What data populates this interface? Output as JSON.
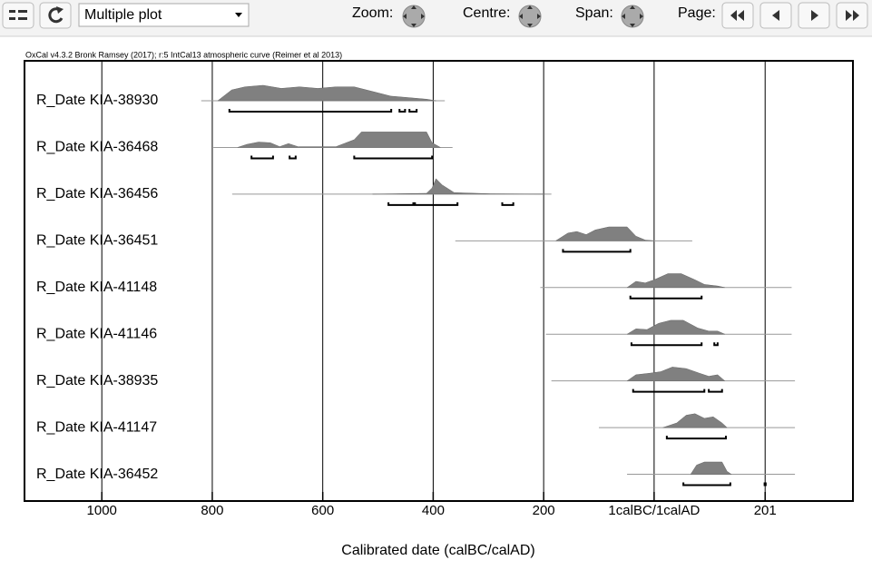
{
  "toolbar": {
    "plot_select": "Multiple plot",
    "zoom": "Zoom:",
    "centre": "Centre:",
    "span": "Span:",
    "page": "Page:"
  },
  "chart_data": {
    "type": "density",
    "credit": "OxCal v4.3.2 Bronk Ramsey (2017); r:5 IntCal13 atmospheric curve (Reimer et al 2013)",
    "x_label": "Calibrated date (calBC/calAD)",
    "xlim": [
      -1140,
      360
    ],
    "xticks": [
      {
        "value": -1000,
        "label": "1000"
      },
      {
        "value": -800,
        "label": "800"
      },
      {
        "value": -600,
        "label": "600"
      },
      {
        "value": -400,
        "label": "400"
      },
      {
        "value": -200,
        "label": "200"
      },
      {
        "value": 0,
        "label": "1calBC/1calAD"
      },
      201
    ],
    "grid": true,
    "color": "#808080",
    "series": [
      {
        "name": "R_Date KIA-38930",
        "line": [
          -820,
          -379
        ],
        "ranges": [
          [
            -769,
            -476
          ],
          [
            -461,
            -451
          ],
          [
            -443,
            -430
          ]
        ],
        "x": [
          -790,
          -765,
          -741,
          -708,
          -675,
          -642,
          -609,
          -576,
          -543,
          -510,
          -477,
          -444,
          -412,
          -395
        ],
        "values": [
          0,
          0.7,
          0.9,
          1,
          0.8,
          0.9,
          0.8,
          0.9,
          0.9,
          0.6,
          0.3,
          0.2,
          0.1,
          0
        ]
      },
      {
        "name": "R_Date KIA-36468",
        "line": [
          -798,
          -365
        ],
        "ranges": [
          [
            -729,
            -690
          ],
          [
            -660,
            -649
          ],
          [
            -543,
            -402
          ]
        ],
        "x": [
          -754,
          -737,
          -716,
          -695,
          -678,
          -662,
          -645,
          -576,
          -543,
          -530,
          -412,
          -402,
          -387
        ],
        "values": [
          0,
          0.2,
          0.35,
          0.3,
          0.05,
          0.25,
          0.05,
          0.05,
          0.5,
          1,
          1,
          0.3,
          0
        ]
      },
      {
        "name": "R_Date KIA-36456",
        "line": [
          -764,
          -186
        ],
        "ranges": [
          [
            -481,
            -436
          ],
          [
            -433,
            -356
          ],
          [
            -275,
            -255
          ]
        ],
        "x": [
          -510,
          -412,
          -402,
          -395,
          -384,
          -362,
          -296,
          -198
        ],
        "values": [
          0,
          0.05,
          0.4,
          1,
          0.6,
          0.1,
          0.02,
          0
        ]
      },
      {
        "name": "R_Date KIA-36451",
        "line": [
          -360,
          69
        ],
        "ranges": [
          [
            -165,
            -43
          ]
        ],
        "x": [
          -178,
          -156,
          -140,
          -123,
          -107,
          -82,
          -49,
          -33,
          -16,
          0
        ],
        "values": [
          0,
          0.5,
          0.6,
          0.4,
          0.7,
          0.9,
          0.9,
          0.3,
          0.05,
          0
        ]
      },
      {
        "name": "R_Date KIA-41148",
        "line": [
          -206,
          249
        ],
        "ranges": [
          [
            -43,
            86
          ]
        ],
        "x": [
          -49,
          -33,
          -16,
          0,
          25,
          49,
          74,
          91,
          115,
          128
        ],
        "values": [
          0,
          0.4,
          0.3,
          0.5,
          0.9,
          0.9,
          0.5,
          0.2,
          0.1,
          0
        ]
      },
      {
        "name": "R_Date KIA-41146",
        "line": [
          -196,
          249
        ],
        "ranges": [
          [
            -41,
            86
          ],
          [
            109,
            115
          ]
        ],
        "x": [
          -49,
          -33,
          -13,
          8,
          30,
          53,
          79,
          99,
          115,
          128
        ],
        "values": [
          0,
          0.35,
          0.3,
          0.7,
          0.9,
          0.9,
          0.4,
          0.2,
          0.2,
          0
        ]
      },
      {
        "name": "R_Date KIA-38935",
        "line": [
          -186,
          255
        ],
        "ranges": [
          [
            -38,
            91
          ],
          [
            99,
            123
          ]
        ],
        "x": [
          -49,
          -33,
          -8,
          12,
          33,
          58,
          82,
          99,
          115,
          128
        ],
        "values": [
          0,
          0.4,
          0.5,
          0.6,
          0.9,
          0.8,
          0.5,
          0.3,
          0.4,
          0
        ]
      },
      {
        "name": "R_Date KIA-41147",
        "line": [
          -100,
          255
        ],
        "ranges": [
          [
            23,
            130
          ]
        ],
        "x": [
          16,
          41,
          58,
          74,
          91,
          107,
          123,
          132
        ],
        "values": [
          0,
          0.3,
          0.8,
          0.9,
          0.6,
          0.7,
          0.3,
          0
        ]
      },
      {
        "name": "R_Date KIA-36452",
        "line": [
          -49,
          255
        ],
        "ranges": [
          [
            53,
            138
          ],
          [
            200,
            202
          ]
        ],
        "x": [
          66,
          77,
          91,
          107,
          123,
          132,
          140
        ],
        "values": [
          0,
          0.6,
          0.8,
          0.8,
          0.8,
          0.2,
          0
        ]
      }
    ]
  }
}
